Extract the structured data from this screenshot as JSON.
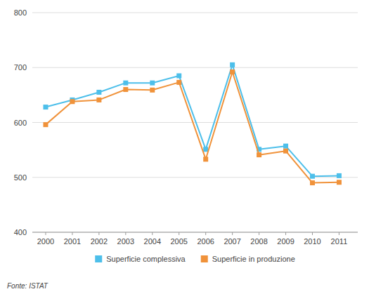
{
  "chart_data": {
    "type": "line",
    "x": [
      2000,
      2001,
      2002,
      2003,
      2004,
      2005,
      2006,
      2007,
      2008,
      2009,
      2010,
      2011
    ],
    "xlim": [
      1999.5,
      2011.7
    ],
    "xticks": [
      2000,
      2001,
      2002,
      2003,
      2004,
      2005,
      2006,
      2007,
      2008,
      2009,
      2010,
      2011
    ],
    "ylim": [
      400,
      800
    ],
    "yticks": [
      400,
      500,
      600,
      700,
      800
    ],
    "grid": true,
    "legend": "bottom",
    "marker": "square",
    "line_style": "solid",
    "series": [
      {
        "name": "Superficie complessiva",
        "color": "#4dbfea",
        "values": [
          628,
          641,
          655,
          672,
          672,
          685,
          551,
          705,
          551,
          557,
          502,
          503
        ]
      },
      {
        "name": "Superficie in produzione",
        "color": "#f0923a",
        "values": [
          596,
          638,
          641,
          660,
          659,
          673,
          533,
          692,
          541,
          548,
          490,
          491
        ]
      }
    ],
    "annotations": [
      "Fonte: ISTAT"
    ]
  }
}
